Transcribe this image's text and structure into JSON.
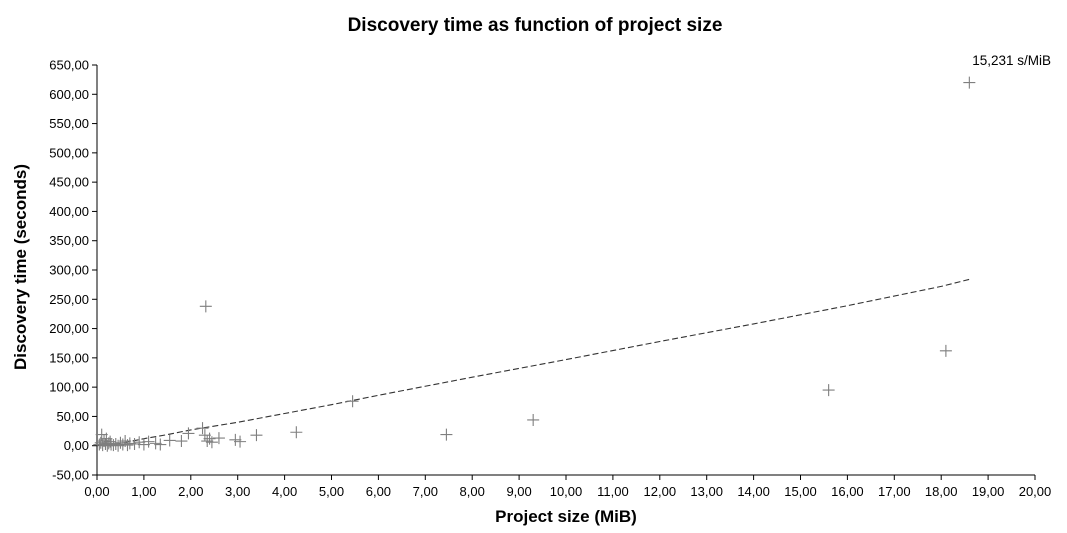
{
  "chart_data": {
    "type": "scatter",
    "title": "Discovery time as function of project size",
    "xlabel": "Project size (MiB)",
    "ylabel": "Discovery time (seconds)",
    "xlim": [
      0,
      20
    ],
    "ylim": [
      -50,
      650
    ],
    "xticks": [
      "0,00",
      "1,00",
      "2,00",
      "3,00",
      "4,00",
      "5,00",
      "6,00",
      "7,00",
      "8,00",
      "9,00",
      "10,00",
      "11,00",
      "12,00",
      "13,00",
      "14,00",
      "15,00",
      "16,00",
      "17,00",
      "18,00",
      "19,00",
      "20,00"
    ],
    "yticks": [
      "-50,00",
      "0,00",
      "50,00",
      "100,00",
      "150,00",
      "200,00",
      "250,00",
      "300,00",
      "350,00",
      "400,00",
      "450,00",
      "500,00",
      "550,00",
      "600,00",
      "650,00"
    ],
    "grid": false,
    "marker_color": "#7f7f7f",
    "points": [
      {
        "x": 0.05,
        "y": 2
      },
      {
        "x": 0.08,
        "y": 5
      },
      {
        "x": 0.1,
        "y": 19
      },
      {
        "x": 0.12,
        "y": 1
      },
      {
        "x": 0.15,
        "y": 8
      },
      {
        "x": 0.18,
        "y": 3
      },
      {
        "x": 0.2,
        "y": 12
      },
      {
        "x": 0.22,
        "y": 0
      },
      {
        "x": 0.25,
        "y": 4
      },
      {
        "x": 0.28,
        "y": 7
      },
      {
        "x": 0.3,
        "y": 2
      },
      {
        "x": 0.35,
        "y": 1
      },
      {
        "x": 0.4,
        "y": 3
      },
      {
        "x": 0.45,
        "y": 0
      },
      {
        "x": 0.5,
        "y": 5
      },
      {
        "x": 0.55,
        "y": 2
      },
      {
        "x": 0.6,
        "y": 8
      },
      {
        "x": 0.65,
        "y": 1
      },
      {
        "x": 0.7,
        "y": 4
      },
      {
        "x": 0.8,
        "y": 3
      },
      {
        "x": 0.9,
        "y": 6
      },
      {
        "x": 1.0,
        "y": 2
      },
      {
        "x": 1.1,
        "y": 7
      },
      {
        "x": 1.25,
        "y": 4
      },
      {
        "x": 1.35,
        "y": 2
      },
      {
        "x": 1.55,
        "y": 9
      },
      {
        "x": 1.8,
        "y": 8
      },
      {
        "x": 1.95,
        "y": 21
      },
      {
        "x": 2.25,
        "y": 30
      },
      {
        "x": 2.3,
        "y": 18
      },
      {
        "x": 2.32,
        "y": 238
      },
      {
        "x": 2.35,
        "y": 8
      },
      {
        "x": 2.4,
        "y": 12
      },
      {
        "x": 2.45,
        "y": 6
      },
      {
        "x": 2.6,
        "y": 13
      },
      {
        "x": 2.95,
        "y": 10
      },
      {
        "x": 3.05,
        "y": 7
      },
      {
        "x": 3.4,
        "y": 18
      },
      {
        "x": 4.25,
        "y": 23
      },
      {
        "x": 5.45,
        "y": 76
      },
      {
        "x": 7.45,
        "y": 19
      },
      {
        "x": 9.3,
        "y": 44
      },
      {
        "x": 15.6,
        "y": 95
      },
      {
        "x": 18.1,
        "y": 162
      },
      {
        "x": 18.6,
        "y": 620
      }
    ],
    "trendline": {
      "style": "dashed",
      "color": "#333333",
      "points": [
        {
          "x": 0.0,
          "y": 0
        },
        {
          "x": 0.5,
          "y": 4
        },
        {
          "x": 1.0,
          "y": 12
        },
        {
          "x": 1.5,
          "y": 19
        },
        {
          "x": 2.0,
          "y": 27
        },
        {
          "x": 3.0,
          "y": 40
        },
        {
          "x": 4.0,
          "y": 55
        },
        {
          "x": 5.0,
          "y": 70
        },
        {
          "x": 6.0,
          "y": 86
        },
        {
          "x": 8.0,
          "y": 117
        },
        {
          "x": 10.0,
          "y": 147
        },
        {
          "x": 12.0,
          "y": 178
        },
        {
          "x": 14.0,
          "y": 208
        },
        {
          "x": 16.0,
          "y": 239
        },
        {
          "x": 18.0,
          "y": 272
        },
        {
          "x": 18.6,
          "y": 284
        }
      ]
    },
    "annotation": "15,231 s/MiB"
  }
}
